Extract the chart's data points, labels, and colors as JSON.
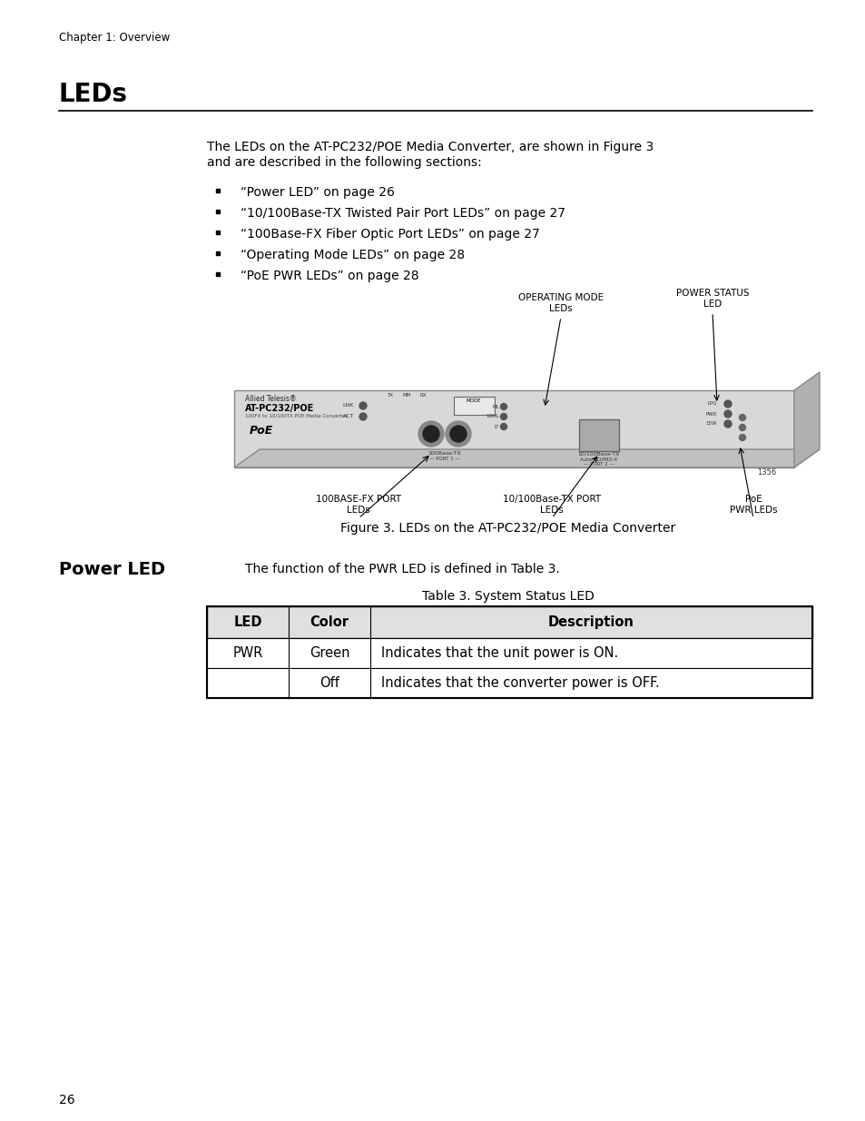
{
  "page_bg": "#ffffff",
  "chapter_label": "Chapter 1: Overview",
  "section_title": "LEDs",
  "body_text_1": "The LEDs on the AT-PC232/POE Media Converter, are shown in Figure 3",
  "body_text_2": "and are described in the following sections:",
  "bullets": [
    "“Power LED” on page 26",
    "“10/100Base-TX Twisted Pair Port LEDs” on page 27",
    "“100Base-FX Fiber Optic Port LEDs” on page 27",
    "“Operating Mode LEDs” on page 28",
    "“PoE PWR LEDs” on page 28"
  ],
  "figure_caption": "Figure 3. LEDs on the AT-PC232/POE Media Converter",
  "power_led_label_text": "Power LED",
  "power_led_body_text": "The function of the PWR LED is defined in Table 3.",
  "table_title": "Table 3. System Status LED",
  "table_header": [
    "LED",
    "Color",
    "Description"
  ],
  "table_rows": [
    [
      "PWR",
      "Green",
      "Indicates that the unit power is ON."
    ],
    [
      "",
      "Off",
      "Indicates that the converter power is OFF."
    ]
  ],
  "page_number": "26",
  "annot_op_mode": [
    "OPERATING MODE",
    "LEDs"
  ],
  "annot_pwr_status": [
    "POWER STATUS",
    "LED"
  ],
  "annot_fx_port": [
    "100BASE-FX PORT",
    "LEDs"
  ],
  "annot_tx_port": [
    "10/100Base-TX PORT",
    "LEDs"
  ],
  "annot_poe_pwr": [
    "PoE",
    "PWR LEDs"
  ]
}
